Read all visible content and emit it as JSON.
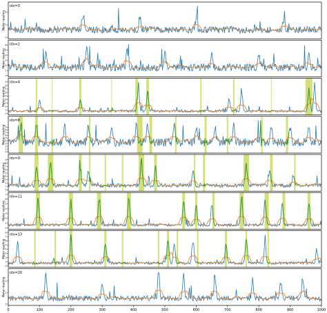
{
  "chart_data": {
    "type": "line",
    "x_range": [
      0,
      1000
    ],
    "x_ticks": [
      0,
      100,
      200,
      300,
      400,
      500,
      600,
      700,
      800,
      900,
      1000
    ],
    "ylabel": "Meter reading",
    "y_ticks": [
      0,
      1,
      2,
      3,
      4,
      5,
      6,
      7,
      8,
      9
    ],
    "colors": {
      "raw": "#1f77b4",
      "smooth": "#ff7f0e",
      "anomaly": "#2ca02c",
      "band": "#c8d64a"
    },
    "panels": [
      {
        "label": "idx=0",
        "level": 0.6,
        "spikes": [
          [
            240,
            1.4
          ],
          [
            420,
            1.2
          ],
          [
            600,
            1.1
          ],
          [
            880,
            1.0
          ]
        ],
        "bands": []
      },
      {
        "label": "idx=2",
        "level": 1.6,
        "spikes": [
          [
            120,
            3.5
          ],
          [
            250,
            4.5
          ],
          [
            380,
            4.0
          ],
          [
            500,
            3.0
          ],
          [
            650,
            3.5
          ],
          [
            800,
            3.0
          ],
          [
            960,
            2.5
          ]
        ],
        "bands": []
      },
      {
        "label": "idx=4",
        "level": 0.7,
        "spikes": [
          [
            100,
            3.5
          ],
          [
            230,
            3.6
          ],
          [
            415,
            7.5
          ],
          [
            445,
            6.5
          ],
          [
            705,
            4.0
          ],
          [
            745,
            6.8
          ],
          [
            960,
            7.2
          ],
          [
            978,
            8.5
          ]
        ],
        "bands": [
          [
            90,
            2
          ],
          [
            140,
            1
          ],
          [
            230,
            3
          ],
          [
            330,
            1
          ],
          [
            410,
            4
          ],
          [
            445,
            4
          ],
          [
            615,
            2
          ],
          [
            720,
            2
          ],
          [
            840,
            1
          ],
          [
            960,
            10
          ]
        ]
      },
      {
        "label": "idx=8",
        "level": 3.4,
        "spikes": [
          [
            40,
            8.5
          ],
          [
            90,
            8.0
          ],
          [
            180,
            7.0
          ],
          [
            255,
            6.5
          ],
          [
            330,
            7.5
          ],
          [
            410,
            8.5
          ],
          [
            445,
            8.0
          ],
          [
            530,
            7.0
          ],
          [
            600,
            7.0
          ],
          [
            660,
            7.0
          ],
          [
            720,
            7.5
          ],
          [
            840,
            6.5
          ],
          [
            900,
            6.5
          ],
          [
            960,
            6.0
          ]
        ],
        "bands": [
          [
            40,
            6
          ],
          [
            90,
            4
          ],
          [
            140,
            2
          ],
          [
            260,
            2
          ],
          [
            420,
            8
          ],
          [
            455,
            4
          ],
          [
            535,
            2
          ],
          [
            630,
            3
          ],
          [
            700,
            2
          ],
          [
            810,
            2
          ],
          [
            890,
            3
          ]
        ]
      },
      {
        "label": "idx=9",
        "level": 1.3,
        "spikes": [
          [
            90,
            6.5
          ],
          [
            135,
            7.5
          ],
          [
            230,
            5.5
          ],
          [
            255,
            4.5
          ],
          [
            425,
            8.5
          ],
          [
            470,
            6.0
          ],
          [
            590,
            4.5
          ],
          [
            760,
            7.5
          ],
          [
            835,
            5.5
          ],
          [
            910,
            4.0
          ]
        ],
        "bands": [
          [
            90,
            6
          ],
          [
            135,
            8
          ],
          [
            230,
            4
          ],
          [
            260,
            2
          ],
          [
            310,
            2
          ],
          [
            365,
            2
          ],
          [
            425,
            8
          ],
          [
            470,
            4
          ],
          [
            595,
            2
          ],
          [
            625,
            3
          ],
          [
            760,
            8
          ],
          [
            840,
            4
          ],
          [
            915,
            2
          ]
        ]
      },
      {
        "label": "idx=11",
        "level": 0.6,
        "spikes": [
          [
            95,
            6.5
          ],
          [
            200,
            5.5
          ],
          [
            290,
            6.5
          ],
          [
            385,
            6.0
          ],
          [
            560,
            6.5
          ],
          [
            600,
            4.5
          ],
          [
            650,
            5.0
          ],
          [
            745,
            7.0
          ],
          [
            820,
            6.5
          ],
          [
            875,
            5.0
          ],
          [
            960,
            5.5
          ]
        ],
        "bands": [
          [
            95,
            6
          ],
          [
            200,
            6
          ],
          [
            290,
            6
          ],
          [
            385,
            6
          ],
          [
            560,
            4
          ],
          [
            600,
            3
          ],
          [
            655,
            3
          ],
          [
            745,
            6
          ],
          [
            825,
            6
          ],
          [
            880,
            4
          ],
          [
            960,
            4
          ]
        ]
      },
      {
        "label": "idx=13",
        "level": 0.7,
        "spikes": [
          [
            30,
            6.0
          ],
          [
            200,
            7.0
          ],
          [
            310,
            6.0
          ],
          [
            510,
            7.0
          ],
          [
            530,
            5.5
          ],
          [
            590,
            6.5
          ],
          [
            695,
            5.0
          ],
          [
            760,
            6.5
          ],
          [
            820,
            6.0
          ],
          [
            985,
            3.5
          ]
        ],
        "bands": [
          [
            85,
            2
          ],
          [
            150,
            2
          ],
          [
            200,
            4
          ],
          [
            310,
            3
          ],
          [
            365,
            2
          ],
          [
            480,
            2
          ],
          [
            510,
            3
          ],
          [
            540,
            2
          ],
          [
            605,
            2
          ],
          [
            695,
            3
          ],
          [
            760,
            2
          ],
          [
            830,
            2
          ]
        ]
      },
      {
        "label": "idx=20",
        "level": 0.5,
        "spikes": [
          [
            120,
            2.5
          ],
          [
            300,
            1.5
          ],
          [
            480,
            2.5
          ],
          [
            560,
            2.2
          ],
          [
            660,
            2.4
          ],
          [
            780,
            1.8
          ],
          [
            870,
            1.6
          ],
          [
            940,
            2.0
          ]
        ],
        "bands": []
      }
    ]
  }
}
